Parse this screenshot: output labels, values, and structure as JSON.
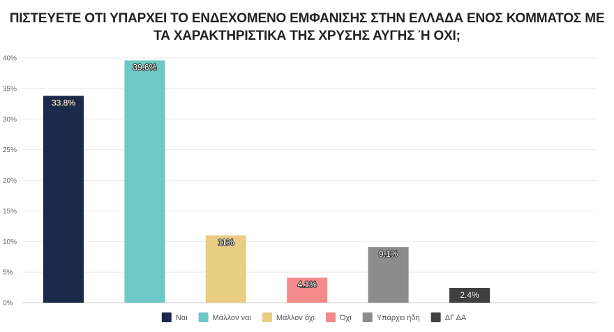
{
  "chart_data": {
    "type": "bar",
    "title": "ΠΙΣΤΕΥΕΤΕ ΟΤΙ ΥΠΑΡΧΕΙ ΤΟ ΕΝΔΕΧΟΜΕΝΟ ΕΜΦΑΝΙΣΗΣ ΣΤΗΝ ΕΛΛΑΔΑ ΕΝΟΣ ΚΟΜΜΑΤΟΣ ΜΕ ΤΑ ΧΑΡΑΚΤΗΡΙΣΤΙΚΑ ΤΗΣ ΧΡΥΣΗΣ ΑΥΓΗΣ Ή ΟΧΙ;",
    "categories": [
      "Ναι",
      "Μάλλον ναι",
      "Μάλλον όχι",
      "Όχι",
      "Υπάρχει ήδη",
      "ΔΓ ΔΑ"
    ],
    "values": [
      33.8,
      39.6,
      11,
      4.1,
      9.1,
      2.4
    ],
    "data_labels": [
      "33.8%",
      "39.6%",
      "11%",
      "4.1%",
      "9.1%",
      "2.4%"
    ],
    "colors": [
      "#1b2a4a",
      "#6ec8c6",
      "#e9cd82",
      "#f48b8b",
      "#8c8c8c",
      "#404040"
    ],
    "ylim": [
      0,
      40
    ],
    "yticks": [
      0,
      5,
      10,
      15,
      20,
      25,
      30,
      35,
      40
    ],
    "ytick_labels": [
      "0%",
      "5%",
      "10%",
      "15%",
      "20%",
      "25%",
      "30%",
      "35%",
      "40%"
    ],
    "xlabel": "",
    "ylabel": "",
    "grid": true,
    "legend_position": "bottom"
  }
}
